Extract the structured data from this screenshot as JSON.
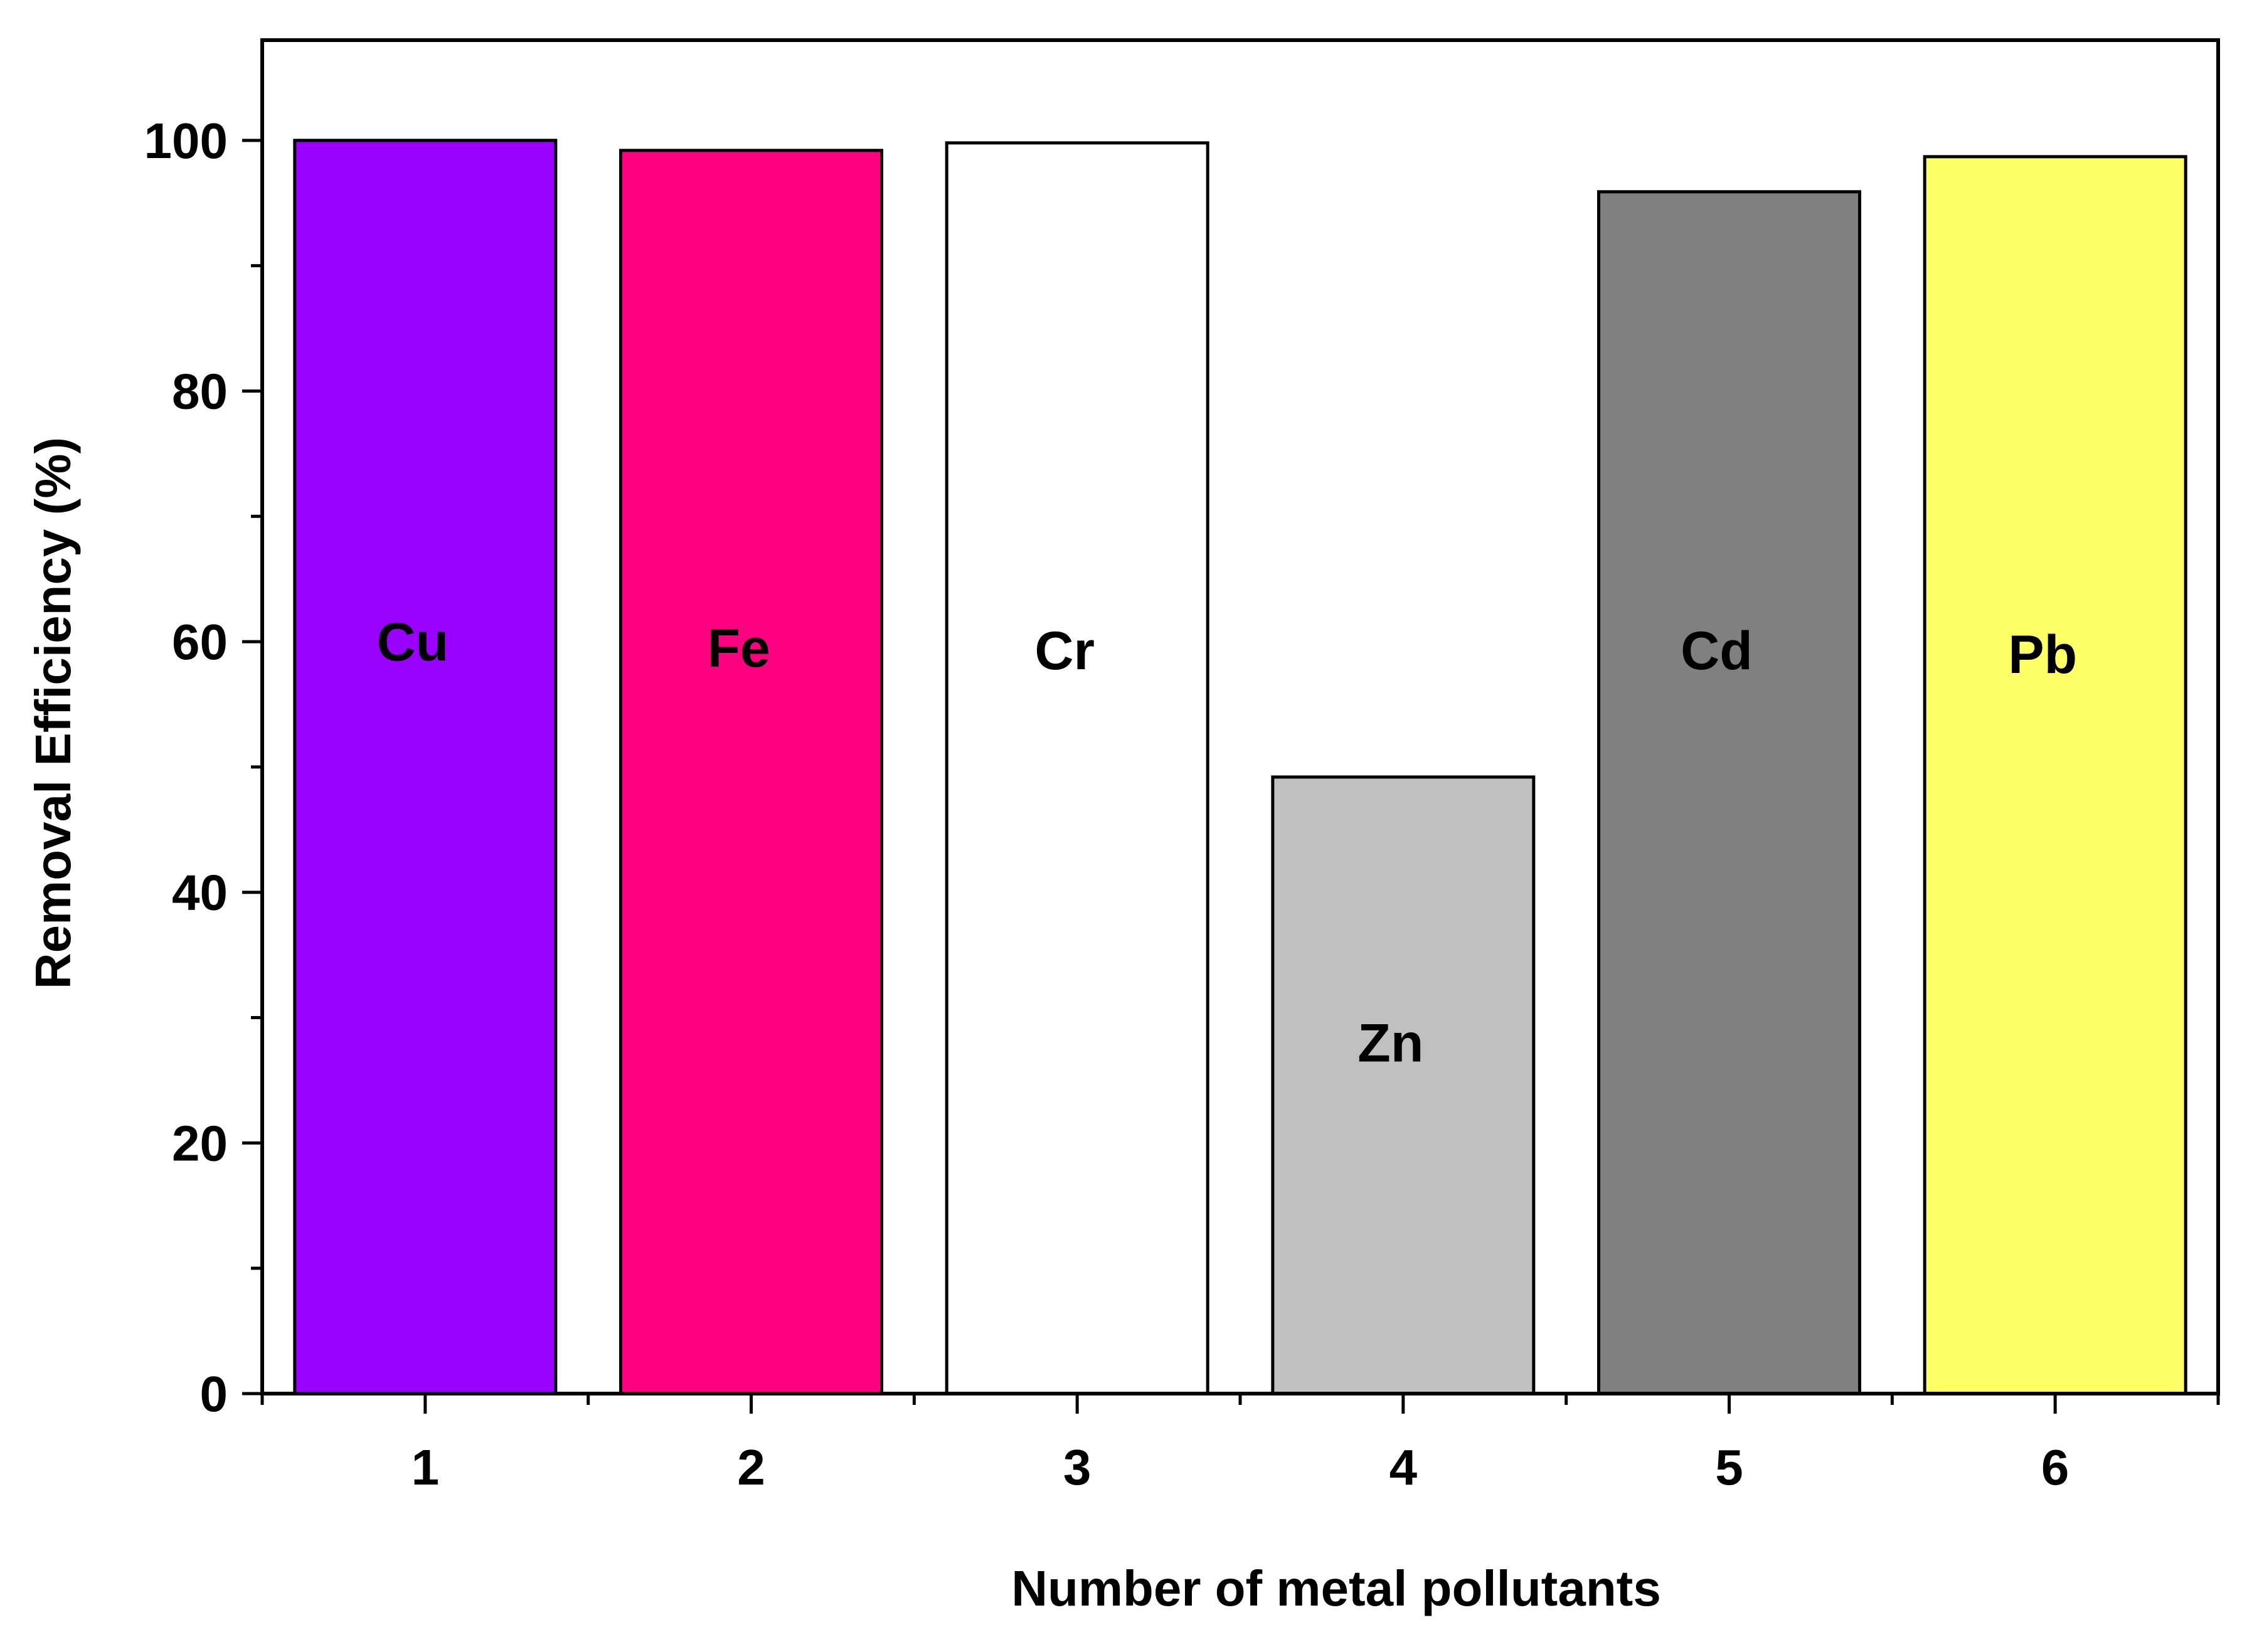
{
  "chart_data": {
    "type": "bar",
    "categories": [
      "1",
      "2",
      "3",
      "4",
      "5",
      "6"
    ],
    "values": [
      100,
      99.2,
      99.8,
      49.2,
      95.9,
      98.7
    ],
    "bar_labels": [
      "Cu",
      "Fe",
      "Cr",
      "Zn",
      "Cd",
      "Pb"
    ],
    "bar_colors": [
      "#9900ff",
      "#ff0080",
      "#ffffff",
      "#c0c0c0",
      "#808080",
      "#ffff66"
    ],
    "xlabel": "Number of metal pollutants",
    "ylabel": "Removal Efficiency (%)",
    "ylim": [
      0,
      108
    ],
    "yticks": [
      0,
      20,
      40,
      60,
      80,
      100
    ],
    "yminor_step": 10,
    "label_y_values": [
      60,
      59.5,
      59.3,
      28,
      59.3,
      59
    ]
  }
}
